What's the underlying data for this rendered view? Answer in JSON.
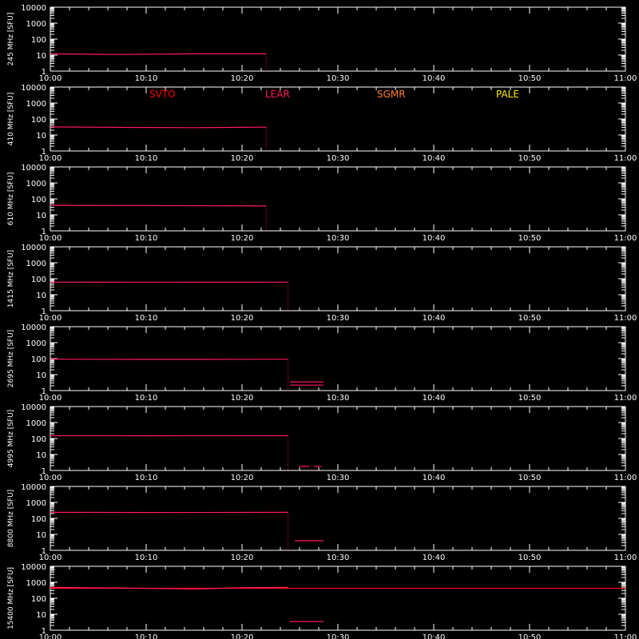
{
  "figure": {
    "background": "#000000",
    "axis_color": "#ffffff",
    "series_colors": {
      "SVTO": "#ff0000",
      "LEAR": "#ff1a5c",
      "SGMR": "#ff7f27",
      "PALE": "#ffee00"
    },
    "legend": {
      "placement": "top of second panel",
      "entries": [
        {
          "label": "SVTO",
          "color": "#ff0000"
        },
        {
          "label": "LEAR",
          "color": "#ff1a5c"
        },
        {
          "label": "SGMR",
          "color": "#ff7f27"
        },
        {
          "label": "PALE",
          "color": "#ffee00"
        }
      ]
    }
  },
  "chart_data": [
    {
      "type": "line",
      "frequency": "245 MHz",
      "ylabel": "245 MHz [SFU]",
      "yscale": "log",
      "ylim": [
        1,
        10000
      ],
      "yticks": [
        "1",
        "10",
        "100",
        "1000",
        "10000"
      ],
      "xlim": [
        "10:00",
        "11:00"
      ],
      "xticks": [
        "10:00",
        "10:10",
        "10:20",
        "10:30",
        "10:40",
        "10:50",
        "11:00"
      ],
      "series": [
        {
          "name": "LEAR",
          "x": [
            "10:00",
            "10:07",
            "10:15",
            "10:22.5"
          ],
          "y": [
            12,
            11,
            12,
            12
          ]
        }
      ]
    },
    {
      "type": "line",
      "frequency": "410 MHz",
      "ylabel": "410 MHz [SFU]",
      "yscale": "log",
      "ylim": [
        1,
        10000
      ],
      "yticks": [
        "1",
        "10",
        "100",
        "1000",
        "10000"
      ],
      "xlim": [
        "10:00",
        "11:00"
      ],
      "xticks": [
        "10:00",
        "10:10",
        "10:20",
        "10:30",
        "10:40",
        "10:50",
        "11:00"
      ],
      "series": [
        {
          "name": "LEAR",
          "x": [
            "10:00",
            "10:08",
            "10:15",
            "10:22.5"
          ],
          "y": [
            32,
            30,
            29,
            31
          ]
        }
      ]
    },
    {
      "type": "line",
      "frequency": "610 MHz",
      "ylabel": "610 MHz [SFU]",
      "yscale": "log",
      "ylim": [
        1,
        10000
      ],
      "yticks": [
        "1",
        "10",
        "100",
        "1000",
        "10000"
      ],
      "xlim": [
        "10:00",
        "11:00"
      ],
      "xticks": [
        "10:00",
        "10:10",
        "10:20",
        "10:30",
        "10:40",
        "10:50",
        "11:00"
      ],
      "series": [
        {
          "name": "LEAR",
          "x": [
            "10:00",
            "10:10",
            "10:18",
            "10:22.5"
          ],
          "y": [
            40,
            38,
            37,
            36
          ]
        }
      ]
    },
    {
      "type": "line",
      "frequency": "1415 MHz",
      "ylabel": "1415 MHz [SFU]",
      "yscale": "log",
      "ylim": [
        1,
        10000
      ],
      "yticks": [
        "1",
        "10",
        "100",
        "1000",
        "10000"
      ],
      "xlim": [
        "10:00",
        "11:00"
      ],
      "xticks": [
        "10:00",
        "10:10",
        "10:20",
        "10:30",
        "10:40",
        "10:50",
        "11:00"
      ],
      "series": [
        {
          "name": "LEAR",
          "x": [
            "10:00",
            "10:10",
            "10:20",
            "10:24.8"
          ],
          "y": [
            62,
            61,
            60,
            62
          ]
        }
      ]
    },
    {
      "type": "line",
      "frequency": "2695 MHz",
      "ylabel": "2695 MHz [SFU]",
      "yscale": "log",
      "ylim": [
        1,
        10000
      ],
      "yticks": [
        "1",
        "10",
        "100",
        "1000",
        "10000"
      ],
      "xlim": [
        "10:00",
        "11:00"
      ],
      "xticks": [
        "10:00",
        "10:10",
        "10:20",
        "10:30",
        "10:40",
        "10:50",
        "11:00"
      ],
      "series": [
        {
          "name": "LEAR",
          "x": [
            "10:00",
            "10:10",
            "10:20",
            "10:24.8"
          ],
          "y": [
            92,
            90,
            91,
            92
          ]
        },
        {
          "name": "LEAR",
          "x": [
            "10:25",
            "10:28.5"
          ],
          "y": [
            3.5,
            3.5
          ]
        },
        {
          "name": "LEAR",
          "x": [
            "10:25",
            "10:28.5"
          ],
          "y": [
            2.2,
            2.2
          ]
        }
      ]
    },
    {
      "type": "line",
      "frequency": "4995 MHz",
      "ylabel": "4995 MHz [SFU]",
      "yscale": "log",
      "ylim": [
        1,
        10000
      ],
      "yticks": [
        "1",
        "10",
        "100",
        "1000",
        "10000"
      ],
      "xlim": [
        "10:00",
        "11:00"
      ],
      "xticks": [
        "10:00",
        "10:10",
        "10:20",
        "10:30",
        "10:40",
        "10:50",
        "11:00"
      ],
      "series": [
        {
          "name": "LEAR",
          "x": [
            "10:00",
            "10:10",
            "10:20",
            "10:24.8"
          ],
          "y": [
            150,
            148,
            149,
            150
          ]
        },
        {
          "name": "LEAR",
          "x": [
            "10:26",
            "10:27"
          ],
          "y": [
            1.8,
            1.8
          ]
        },
        {
          "name": "LEAR",
          "x": [
            "10:27.5",
            "10:28.3"
          ],
          "y": [
            1.8,
            1.8
          ]
        }
      ]
    },
    {
      "type": "line",
      "frequency": "8800 MHz",
      "ylabel": "8800 MHz [SFU]",
      "yscale": "log",
      "ylim": [
        1,
        10000
      ],
      "yticks": [
        "1",
        "10",
        "100",
        "1000",
        "10000"
      ],
      "xlim": [
        "10:00",
        "11:00"
      ],
      "xticks": [
        "10:00",
        "10:10",
        "10:20",
        "10:30",
        "10:40",
        "10:50",
        "11:00"
      ],
      "series": [
        {
          "name": "LEAR",
          "x": [
            "10:00",
            "10:10",
            "10:20",
            "10:24.8"
          ],
          "y": [
            240,
            235,
            238,
            240
          ]
        },
        {
          "name": "LEAR",
          "x": [
            "10:25.5",
            "10:28.5"
          ],
          "y": [
            4,
            4
          ]
        }
      ]
    },
    {
      "type": "line",
      "frequency": "15400 MHz",
      "ylabel": "15400 MHz [SFU]",
      "yscale": "log",
      "ylim": [
        1,
        10000
      ],
      "yticks": [
        "1",
        "10",
        "100",
        "1000",
        "10000"
      ],
      "xlim": [
        "10:00",
        "11:00"
      ],
      "xticks": [
        "10:00",
        "10:10",
        "10:20",
        "10:30",
        "10:40",
        "10:50",
        "11:00"
      ],
      "series": [
        {
          "name": "SVTO",
          "x": [
            "10:00",
            "11:00"
          ],
          "y": [
            420,
            420
          ]
        },
        {
          "name": "LEAR",
          "x": [
            "10:00",
            "10:10",
            "10:15",
            "10:20",
            "10:24.8"
          ],
          "y": [
            480,
            420,
            380,
            460,
            480
          ]
        },
        {
          "name": "LEAR",
          "x": [
            "10:25",
            "10:28.5"
          ],
          "y": [
            3.5,
            3.5
          ]
        }
      ]
    }
  ]
}
